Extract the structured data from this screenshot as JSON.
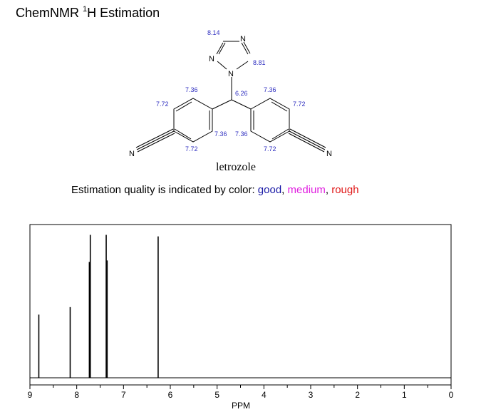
{
  "title": {
    "prefix": "ChemNMR ",
    "sup": "1",
    "rest": "H Estimation"
  },
  "molecule": {
    "name": "letrozole",
    "atoms": {
      "n_top": "N",
      "n_left": "N",
      "n_center": "N",
      "n_cn_left": "N",
      "n_cn_right": "N"
    },
    "shifts": {
      "triazole_top": "8.14",
      "triazole_right": "8.81",
      "methine": "6.26",
      "left_ortho_top": "7.36",
      "left_meta_top": "7.72",
      "left_ortho_bottom": "7.36",
      "left_meta_bottom": "7.72",
      "right_ortho_top": "7.36",
      "right_meta_top": "7.72",
      "right_ortho_bottom": "7.36",
      "right_meta_bottom": "7.72"
    }
  },
  "quality": {
    "prefix": "Estimation quality is indicated by color: ",
    "good": "good",
    "sep1": ", ",
    "medium": "medium",
    "sep2": ", ",
    "rough": "rough",
    "colors": {
      "good": "#1a1aa6",
      "medium": "#e020e0",
      "rough": "#e01818"
    }
  },
  "chart_data": {
    "type": "line",
    "xlabel": "PPM",
    "xlim": [
      9,
      0
    ],
    "x_reversed": true,
    "ylim": [
      0,
      1
    ],
    "x_ticks": [
      "9",
      "8",
      "7",
      "6",
      "5",
      "4",
      "3",
      "2",
      "1",
      "0"
    ],
    "series": [
      {
        "peaks": [
          {
            "ppm": 8.81,
            "height": 0.42
          },
          {
            "ppm": 8.14,
            "height": 0.47
          },
          {
            "ppm": 7.73,
            "height": 0.77
          },
          {
            "ppm": 7.71,
            "height": 0.95
          },
          {
            "ppm": 7.37,
            "height": 0.95
          },
          {
            "ppm": 7.35,
            "height": 0.78
          },
          {
            "ppm": 6.26,
            "height": 0.94
          }
        ]
      }
    ],
    "grid": false
  }
}
